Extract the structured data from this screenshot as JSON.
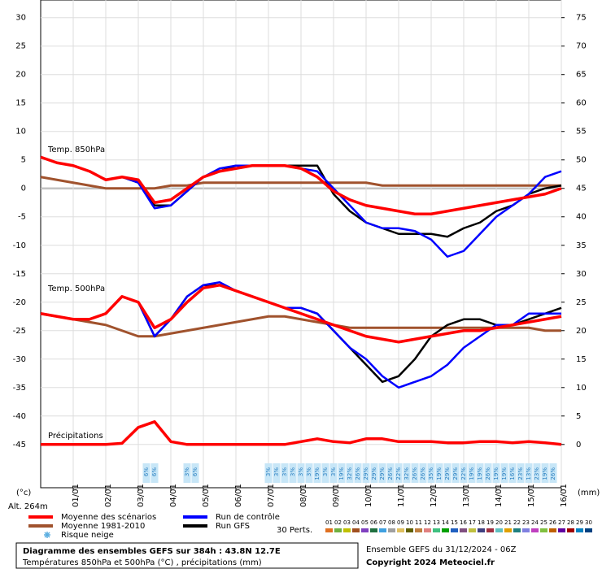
{
  "chart_data": {
    "type": "line",
    "title": "Diagramme des ensembles GEFS sur 384h : 43.8N 12.7E",
    "subtitle": "Températures 850hPa et 500hPa (°C) , précipitations (mm)",
    "run_info": "Ensemble GEFS du 31/12/2024 - 06Z",
    "copyright": "Copyright 2024 Meteociel.fr",
    "y_label": "(°c)",
    "y2_label": "(mm)",
    "altitude": "Alt. 264m",
    "annotations": [
      "Temp. 850hPa",
      "Temp. 500hPa",
      "Précipitations"
    ],
    "ylim": [
      -52.6,
      33.1
    ],
    "yticks": [
      30,
      25,
      20,
      15,
      10,
      5,
      0,
      -5,
      -10,
      -15,
      -20,
      -25,
      -30,
      -35,
      -40,
      -45
    ],
    "y2lim": [
      -7.6,
      78.1
    ],
    "y2ticks": [
      75,
      70,
      65,
      60,
      55,
      50,
      45,
      40,
      35,
      30,
      25,
      20,
      15,
      10,
      5,
      0
    ],
    "xticks": [
      "01/01",
      "02/01",
      "03/01",
      "04/01",
      "05/01",
      "06/01",
      "07/01",
      "08/01",
      "09/01",
      "10/01",
      "11/01",
      "12/01",
      "13/01",
      "14/01",
      "15/01",
      "16/01"
    ],
    "grid": true,
    "series": [
      {
        "name": "Moyenne 1981-2010",
        "color": "#a0522d",
        "axis": "y",
        "values": [
          2,
          1.5,
          1,
          0.5,
          0,
          0,
          0,
          0,
          0.5,
          0.5,
          1,
          1,
          1,
          1,
          1,
          1,
          1,
          1,
          1,
          1,
          1,
          0.5,
          0.5,
          0.5,
          0.5,
          0.5,
          0.5,
          0.5,
          0.5,
          0.5,
          0.5,
          0.5,
          0.5
        ]
      },
      {
        "name": "Run GFS",
        "color": "#000000",
        "axis": "y",
        "values": [
          5.5,
          4.5,
          4,
          3,
          1.5,
          2,
          1,
          -3,
          -3,
          -0.5,
          2,
          3,
          4,
          4,
          4,
          4,
          4,
          4,
          -1,
          -4,
          -6,
          -7,
          -8,
          -8,
          -8,
          -8.5,
          -7,
          -6,
          -4,
          -3,
          -1,
          0,
          0.5
        ]
      },
      {
        "name": "Run de contrôle",
        "color": "#0000ff",
        "axis": "y",
        "values": [
          5.5,
          4.5,
          4,
          3,
          1.5,
          2,
          1,
          -3.5,
          -3,
          -0.5,
          2,
          3.5,
          4,
          4,
          4,
          4,
          3.5,
          3,
          0,
          -3,
          -6,
          -7,
          -7,
          -7.5,
          -9,
          -12,
          -11,
          -8,
          -5,
          -3,
          -1,
          2,
          3
        ]
      },
      {
        "name": "Moyenne des scénarios",
        "color": "#ff0000",
        "axis": "y",
        "values": [
          5.5,
          4.5,
          4,
          3,
          1.5,
          2,
          1.5,
          -2.5,
          -2,
          0,
          2,
          3,
          3.5,
          4,
          4,
          4,
          3.5,
          2,
          -0.5,
          -2,
          -3,
          -3.5,
          -4,
          -4.5,
          -4.5,
          -4,
          -3.5,
          -3,
          -2.5,
          -2,
          -1.5,
          -1,
          0
        ]
      },
      {
        "color": "#a0522d",
        "axis": "y",
        "values": [
          -22,
          -22.5,
          -23,
          -23.5,
          -24,
          -25,
          -26,
          -26,
          -25.5,
          -25,
          -24.5,
          -24,
          -23.5,
          -23,
          -22.5,
          -22.5,
          -23,
          -23.5,
          -24,
          -24.5,
          -24.5,
          -24.5,
          -24.5,
          -24.5,
          -24.5,
          -24.5,
          -24.5,
          -24.5,
          -24.5,
          -24.5,
          -24.5,
          -25,
          -25
        ]
      },
      {
        "color": "#000000",
        "axis": "y",
        "values": [
          -22,
          -22.5,
          -23,
          -23,
          -22,
          -19,
          -20,
          -26,
          -23,
          -19,
          -17,
          -17,
          -18,
          -19,
          -20,
          -21,
          -21,
          -22,
          -25,
          -28,
          -31,
          -34,
          -33,
          -30,
          -26,
          -24,
          -23,
          -23,
          -24,
          -24,
          -23,
          -22,
          -21
        ]
      },
      {
        "color": "#0000ff",
        "axis": "y",
        "values": [
          -22,
          -22.5,
          -23,
          -23,
          -22,
          -19,
          -20,
          -26,
          -23,
          -19,
          -17,
          -16.5,
          -18,
          -19,
          -20,
          -21,
          -21,
          -22,
          -25,
          -28,
          -30,
          -33,
          -35,
          -34,
          -33,
          -31,
          -28,
          -26,
          -24,
          -24,
          -22,
          -22,
          -22
        ]
      },
      {
        "color": "#ff0000",
        "axis": "y",
        "values": [
          -22,
          -22.5,
          -23,
          -23,
          -22,
          -19,
          -20,
          -24.5,
          -23,
          -20,
          -17.5,
          -17,
          -18,
          -19,
          -20,
          -21,
          -22,
          -23,
          -24,
          -25,
          -26,
          -26.5,
          -27,
          -26.5,
          -26,
          -25.5,
          -25,
          -25,
          -24.5,
          -24,
          -23.5,
          -23,
          -22.5
        ]
      },
      {
        "color": "#ff0000",
        "axis": "y2",
        "values": [
          0,
          0,
          0,
          0,
          0,
          0.2,
          3,
          4,
          0.5,
          0,
          0,
          0,
          0,
          0,
          0,
          0,
          0.5,
          1,
          0.5,
          0.3,
          1,
          1,
          0.5,
          0.5,
          0.5,
          0.3,
          0.3,
          0.5,
          0.5,
          0.3,
          0.5,
          0.3,
          0
        ]
      }
    ],
    "snow_legend": "Risque neige",
    "snow_risk": {
      "values": [
        null,
        null,
        null,
        null,
        null,
        null,
        null,
        null,
        null,
        null,
        null,
        null,
        null,
        6,
        6,
        null,
        null,
        null,
        3,
        6,
        null,
        null,
        null,
        null,
        null,
        null,
        null,
        null,
        3,
        3,
        3,
        3,
        3,
        3,
        19,
        3,
        3,
        19,
        32,
        26,
        29,
        29,
        29,
        26,
        22,
        32,
        26,
        26,
        35,
        19,
        29,
        29,
        22,
        19,
        19,
        26,
        19,
        19,
        16,
        23,
        13,
        23,
        19,
        26
      ],
      "value_labels": [
        null,
        null,
        null,
        null,
        null,
        null,
        null,
        null,
        null,
        null,
        null,
        null,
        null,
        "6%",
        "6%",
        null,
        null,
        null,
        "3%",
        "6%",
        null,
        null,
        null,
        null,
        null,
        null,
        null,
        null,
        "3%",
        "3%",
        "3%",
        "3%",
        "3%",
        "3%",
        "19%",
        "3%",
        "3%",
        "19%",
        "32%",
        "26%",
        "29%",
        "29%",
        "29%",
        "26%",
        "22%",
        "32%",
        "26%",
        "26%",
        "35%",
        "19%",
        "29%",
        "29%",
        "22%",
        "19%",
        "19%",
        "26%",
        "19%",
        "19%",
        "16%",
        "23%",
        "13%",
        "23%",
        "19%",
        "26%"
      ]
    },
    "perturbations_legend": "30 Perts.",
    "perturbation_labels": [
      "01",
      "02",
      "03",
      "04",
      "05",
      "06",
      "07",
      "08",
      "09",
      "10",
      "11",
      "12",
      "13",
      "14",
      "15",
      "16",
      "17",
      "18",
      "19",
      "20",
      "21",
      "22",
      "23",
      "24",
      "25",
      "26",
      "27",
      "28",
      "29",
      "30"
    ],
    "perturbation_colors": [
      "#e07020",
      "#70b040",
      "#c0c000",
      "#a05020",
      "#8040c0",
      "#207040",
      "#40a0e0",
      "#a0a0a0",
      "#e0c060",
      "#606000",
      "#c08040",
      "#e08080",
      "#40c080",
      "#00a000",
      "#2060c0",
      "#805080",
      "#c0c040",
      "#404080",
      "#a03040",
      "#60c0c0",
      "#e0a000",
      "#208080",
      "#8080e0",
      "#c040c0",
      "#80c040",
      "#c06000",
      "#6000a0",
      "#a00000",
      "#0080c0",
      "#004080"
    ]
  }
}
